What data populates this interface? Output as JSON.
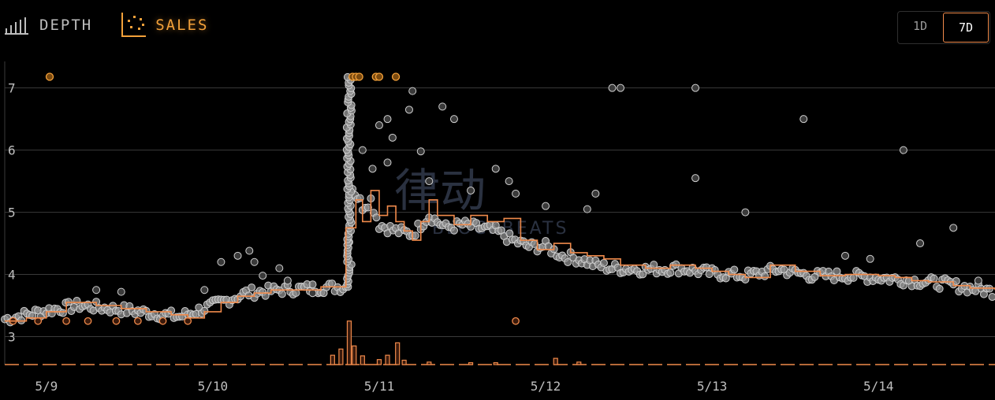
{
  "tabs": [
    {
      "label": "DEPTH",
      "icon": "bar-chart-icon",
      "active": false
    },
    {
      "label": "SALES",
      "icon": "scatter-icon",
      "active": true
    }
  ],
  "range": {
    "options": [
      "1D",
      "7D"
    ],
    "selected": "7D"
  },
  "watermark": {
    "cn": "律动",
    "en": "BLOCKBEATS"
  },
  "colors": {
    "accent": "#f08a4b",
    "dot": "#8f8f8f",
    "dot_stroke": "#cfcfcf",
    "highlight": "#f3a13a",
    "bg": "#000000",
    "grid": "#3a3a3a"
  },
  "chart_data": {
    "type": "scatter",
    "x_ticks": [
      "5/9",
      "5/10",
      "5/11",
      "5/12",
      "5/13",
      "5/14"
    ],
    "y_ticks": [
      3,
      4,
      5,
      6,
      7
    ],
    "ylim": [
      2.55,
      7.3
    ],
    "xlim": [
      -0.25,
      5.7
    ],
    "grid": true,
    "series": [
      {
        "kind": "step_line",
        "points": [
          [
            -0.25,
            3.25
          ],
          [
            -0.12,
            3.3
          ],
          [
            0.0,
            3.4
          ],
          [
            0.12,
            3.55
          ],
          [
            0.3,
            3.5
          ],
          [
            0.45,
            3.45
          ],
          [
            0.6,
            3.4
          ],
          [
            0.75,
            3.35
          ],
          [
            0.85,
            3.3
          ],
          [
            0.95,
            3.4
          ],
          [
            1.05,
            3.55
          ],
          [
            1.15,
            3.65
          ],
          [
            1.25,
            3.7
          ],
          [
            1.35,
            3.75
          ],
          [
            1.5,
            3.75
          ],
          [
            1.65,
            3.8
          ],
          [
            1.75,
            3.8
          ],
          [
            1.8,
            4.75
          ],
          [
            1.86,
            5.2
          ],
          [
            1.9,
            4.85
          ],
          [
            1.95,
            5.35
          ],
          [
            2.0,
            4.95
          ],
          [
            2.05,
            5.1
          ],
          [
            2.1,
            4.85
          ],
          [
            2.15,
            4.7
          ],
          [
            2.2,
            4.55
          ],
          [
            2.25,
            4.85
          ],
          [
            2.3,
            5.2
          ],
          [
            2.35,
            4.95
          ],
          [
            2.45,
            4.8
          ],
          [
            2.55,
            4.95
          ],
          [
            2.65,
            4.85
          ],
          [
            2.75,
            4.9
          ],
          [
            2.85,
            4.55
          ],
          [
            2.95,
            4.4
          ],
          [
            3.05,
            4.5
          ],
          [
            3.15,
            4.35
          ],
          [
            3.25,
            4.3
          ],
          [
            3.35,
            4.25
          ],
          [
            3.45,
            4.15
          ],
          [
            3.6,
            4.1
          ],
          [
            3.75,
            4.15
          ],
          [
            3.9,
            4.1
          ],
          [
            4.0,
            4.05
          ],
          [
            4.1,
            4.0
          ],
          [
            4.2,
            3.95
          ],
          [
            4.35,
            4.15
          ],
          [
            4.5,
            4.05
          ],
          [
            4.65,
            3.98
          ],
          [
            4.8,
            4.0
          ],
          [
            5.0,
            3.98
          ],
          [
            5.1,
            3.95
          ],
          [
            5.2,
            3.9
          ],
          [
            5.3,
            3.88
          ],
          [
            5.45,
            3.82
          ],
          [
            5.55,
            3.78
          ],
          [
            5.7,
            3.75
          ]
        ]
      },
      {
        "kind": "band",
        "points": [
          [
            -0.25,
            3.28
          ],
          [
            0.0,
            3.42
          ],
          [
            0.2,
            3.5
          ],
          [
            0.5,
            3.42
          ],
          [
            0.8,
            3.32
          ],
          [
            1.0,
            3.5
          ],
          [
            1.2,
            3.7
          ],
          [
            1.4,
            3.75
          ],
          [
            1.6,
            3.78
          ],
          [
            1.8,
            3.8
          ],
          [
            1.84,
            5.4
          ],
          [
            1.9,
            5.1
          ],
          [
            1.95,
            5.2
          ],
          [
            2.0,
            4.8
          ],
          [
            2.1,
            4.7
          ],
          [
            2.2,
            4.65
          ],
          [
            2.3,
            4.95
          ],
          [
            2.4,
            4.75
          ],
          [
            2.5,
            4.8
          ],
          [
            2.6,
            4.75
          ],
          [
            2.7,
            4.7
          ],
          [
            2.8,
            4.55
          ],
          [
            2.9,
            4.45
          ],
          [
            3.0,
            4.45
          ],
          [
            3.1,
            4.3
          ],
          [
            3.2,
            4.25
          ],
          [
            3.3,
            4.15
          ],
          [
            3.4,
            4.1
          ],
          [
            3.6,
            4.08
          ],
          [
            3.8,
            4.1
          ],
          [
            4.0,
            4.02
          ],
          [
            4.2,
            3.98
          ],
          [
            4.4,
            4.08
          ],
          [
            4.6,
            3.98
          ],
          [
            4.8,
            3.98
          ],
          [
            5.0,
            3.95
          ],
          [
            5.2,
            3.9
          ],
          [
            5.4,
            3.85
          ],
          [
            5.55,
            3.78
          ],
          [
            5.7,
            3.72
          ]
        ]
      },
      {
        "kind": "spike_column",
        "x": 1.82,
        "ymin": 3.8,
        "ymax": 7.2
      },
      {
        "kind": "outliers",
        "points": [
          [
            0.3,
            3.75
          ],
          [
            0.45,
            3.72
          ],
          [
            0.95,
            3.75
          ],
          [
            1.05,
            4.2
          ],
          [
            1.15,
            4.3
          ],
          [
            1.22,
            4.38
          ],
          [
            1.25,
            4.2
          ],
          [
            1.3,
            3.98
          ],
          [
            1.4,
            4.1
          ],
          [
            1.45,
            3.9
          ],
          [
            1.6,
            3.7
          ],
          [
            1.9,
            6.0
          ],
          [
            1.96,
            5.7
          ],
          [
            2.0,
            6.4
          ],
          [
            2.05,
            6.5
          ],
          [
            2.05,
            5.8
          ],
          [
            2.08,
            6.2
          ],
          [
            2.2,
            6.95
          ],
          [
            2.18,
            6.65
          ],
          [
            2.25,
            5.98
          ],
          [
            2.3,
            5.5
          ],
          [
            2.38,
            6.7
          ],
          [
            2.45,
            6.5
          ],
          [
            2.55,
            5.35
          ],
          [
            2.7,
            5.7
          ],
          [
            2.78,
            5.5
          ],
          [
            2.82,
            5.3
          ],
          [
            3.4,
            7.0
          ],
          [
            3.45,
            7.0
          ],
          [
            3.9,
            5.55
          ],
          [
            3.9,
            7.0
          ],
          [
            3.3,
            5.3
          ],
          [
            3.25,
            5.05
          ],
          [
            3.0,
            5.1
          ],
          [
            4.2,
            5.0
          ],
          [
            4.55,
            6.5
          ],
          [
            4.8,
            4.3
          ],
          [
            4.95,
            4.25
          ],
          [
            5.15,
            6.0
          ],
          [
            5.25,
            4.5
          ],
          [
            5.45,
            4.75
          ],
          [
            5.6,
            3.9
          ]
        ]
      },
      {
        "kind": "highlighted",
        "points": [
          [
            0.02,
            7.18
          ],
          [
            1.84,
            7.18
          ],
          [
            1.86,
            7.18
          ],
          [
            1.88,
            7.18
          ],
          [
            1.98,
            7.18
          ],
          [
            2.0,
            7.18
          ],
          [
            2.1,
            7.18
          ]
        ]
      },
      {
        "kind": "accent_points",
        "points": [
          [
            -0.2,
            3.25
          ],
          [
            -0.05,
            3.25
          ],
          [
            0.12,
            3.25
          ],
          [
            0.25,
            3.25
          ],
          [
            0.42,
            3.25
          ],
          [
            0.55,
            3.25
          ],
          [
            0.7,
            3.25
          ],
          [
            0.85,
            3.25
          ],
          [
            2.82,
            3.25
          ]
        ]
      },
      {
        "kind": "volume",
        "points": [
          [
            1.72,
            0.15
          ],
          [
            1.77,
            0.25
          ],
          [
            1.82,
            0.7
          ],
          [
            1.85,
            0.3
          ],
          [
            1.9,
            0.14
          ],
          [
            2.0,
            0.08
          ],
          [
            2.05,
            0.15
          ],
          [
            2.11,
            0.35
          ],
          [
            2.15,
            0.07
          ],
          [
            2.3,
            0.04
          ],
          [
            2.55,
            0.03
          ],
          [
            2.7,
            0.03
          ],
          [
            3.06,
            0.1
          ],
          [
            3.2,
            0.04
          ]
        ]
      }
    ]
  }
}
